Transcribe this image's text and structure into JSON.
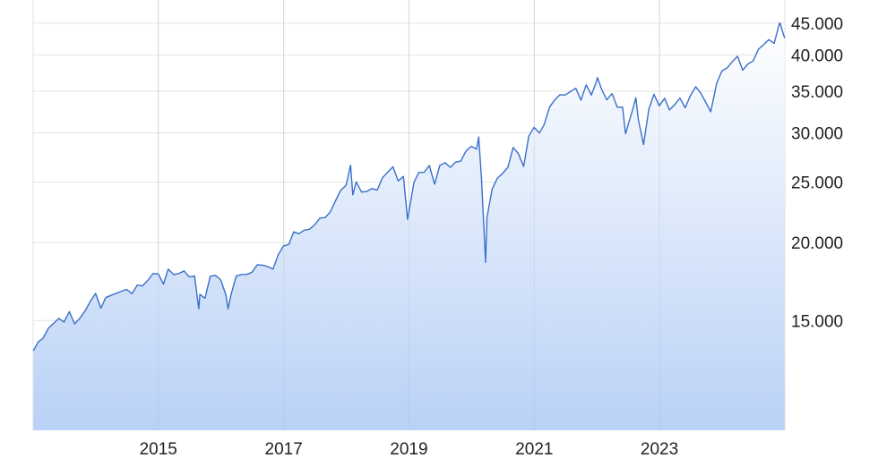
{
  "chart_data": {
    "type": "area",
    "title": "",
    "xlabel": "",
    "ylabel": "",
    "y_scale": "log",
    "ylim": [
      10000,
      49000
    ],
    "xlim": [
      "2013-01-01",
      "2025-01-01"
    ],
    "grid": true,
    "legend": "none",
    "colors": {
      "line": "#3a6fc9",
      "fill_top": "#ffffff",
      "fill_bottom": "#b9d1f6",
      "grid": "#e2e2e2"
    },
    "x_ticks": [
      {
        "date": "2015-01-01",
        "label": "2015"
      },
      {
        "date": "2017-01-01",
        "label": "2017"
      },
      {
        "date": "2019-01-01",
        "label": "2019"
      },
      {
        "date": "2021-01-01",
        "label": "2021"
      },
      {
        "date": "2023-01-01",
        "label": "2023"
      }
    ],
    "y_ticks": [
      {
        "value": 15000,
        "label": "15.000"
      },
      {
        "value": 20000,
        "label": "20.000"
      },
      {
        "value": 25000,
        "label": "25.000"
      },
      {
        "value": 30000,
        "label": "30.000"
      },
      {
        "value": 35000,
        "label": "35.000"
      },
      {
        "value": 40000,
        "label": "40.000"
      },
      {
        "value": 45000,
        "label": "45.000"
      }
    ],
    "series": [
      {
        "x": [
          "2013-01-02",
          "2013-01-31",
          "2013-02-28",
          "2013-03-31",
          "2013-04-30",
          "2013-05-31",
          "2013-06-30",
          "2013-07-31",
          "2013-08-31",
          "2013-09-30",
          "2013-10-31",
          "2013-11-30",
          "2013-12-31",
          "2014-01-31",
          "2014-02-28",
          "2014-03-31",
          "2014-04-30",
          "2014-05-31",
          "2014-06-30",
          "2014-07-31",
          "2014-08-31",
          "2014-09-30",
          "2014-10-31",
          "2014-11-30",
          "2014-12-31",
          "2015-01-31",
          "2015-02-28",
          "2015-03-31",
          "2015-04-30",
          "2015-05-31",
          "2015-06-30",
          "2015-07-31",
          "2015-08-25",
          "2015-08-31",
          "2015-09-30",
          "2015-10-31",
          "2015-11-30",
          "2015-12-31",
          "2016-01-31",
          "2016-02-11",
          "2016-02-29",
          "2016-03-31",
          "2016-04-30",
          "2016-05-31",
          "2016-06-30",
          "2016-07-31",
          "2016-08-31",
          "2016-09-30",
          "2016-10-31",
          "2016-11-30",
          "2016-12-31",
          "2017-01-31",
          "2017-02-28",
          "2017-03-31",
          "2017-04-30",
          "2017-05-31",
          "2017-06-30",
          "2017-07-31",
          "2017-08-31",
          "2017-09-30",
          "2017-10-31",
          "2017-11-30",
          "2017-12-31",
          "2018-01-26",
          "2018-02-08",
          "2018-02-28",
          "2018-03-31",
          "2018-04-30",
          "2018-05-31",
          "2018-06-30",
          "2018-07-31",
          "2018-08-31",
          "2018-09-30",
          "2018-10-31",
          "2018-11-30",
          "2018-12-24",
          "2019-01-31",
          "2019-02-28",
          "2019-03-31",
          "2019-04-30",
          "2019-05-31",
          "2019-06-30",
          "2019-07-31",
          "2019-08-31",
          "2019-09-30",
          "2019-10-31",
          "2019-11-30",
          "2019-12-31",
          "2020-01-31",
          "2020-02-12",
          "2020-02-28",
          "2020-03-23",
          "2020-03-31",
          "2020-04-30",
          "2020-05-31",
          "2020-06-30",
          "2020-07-31",
          "2020-08-31",
          "2020-09-30",
          "2020-10-31",
          "2020-11-30",
          "2020-12-31",
          "2021-01-31",
          "2021-02-28",
          "2021-03-31",
          "2021-04-30",
          "2021-05-31",
          "2021-06-30",
          "2021-07-31",
          "2021-08-31",
          "2021-09-30",
          "2021-10-31",
          "2021-11-30",
          "2021-12-31",
          "2022-01-04",
          "2022-01-31",
          "2022-02-28",
          "2022-03-31",
          "2022-04-30",
          "2022-05-31",
          "2022-06-17",
          "2022-06-30",
          "2022-07-31",
          "2022-08-16",
          "2022-08-31",
          "2022-09-30",
          "2022-10-31",
          "2022-11-30",
          "2022-12-31",
          "2023-01-31",
          "2023-02-28",
          "2023-03-31",
          "2023-04-30",
          "2023-05-31",
          "2023-06-30",
          "2023-07-31",
          "2023-08-31",
          "2023-09-30",
          "2023-10-27",
          "2023-11-30",
          "2023-12-31",
          "2024-01-31",
          "2024-02-29",
          "2024-03-31",
          "2024-04-30",
          "2024-05-31",
          "2024-06-30",
          "2024-07-31",
          "2024-08-31",
          "2024-09-30",
          "2024-10-31",
          "2024-11-30",
          "2024-12-04",
          "2024-12-31"
        ],
        "values": [
          13412,
          13860,
          14054,
          14579,
          14840,
          15116,
          14910,
          15500,
          14810,
          15130,
          15546,
          16086,
          16577,
          15699,
          16322,
          16458,
          16581,
          16717,
          16827,
          16563,
          17098,
          17043,
          17391,
          17828,
          17823,
          17165,
          18133,
          17776,
          17841,
          18011,
          17620,
          17690,
          15666,
          16528,
          16285,
          17664,
          17720,
          17425,
          16466,
          15660,
          16517,
          17685,
          17774,
          17787,
          17930,
          18432,
          18401,
          18308,
          18142,
          19124,
          19763,
          19864,
          20812,
          20663,
          20941,
          21009,
          21350,
          21891,
          21948,
          22405,
          23377,
          24272,
          24719,
          26617,
          23860,
          25029,
          24103,
          24163,
          24416,
          24271,
          25415,
          25965,
          26458,
          25116,
          25538,
          21792,
          24999,
          25916,
          25929,
          26593,
          24815,
          26600,
          26864,
          26403,
          26917,
          27046,
          28051,
          28538,
          28256,
          29551,
          25409,
          18592,
          21917,
          24346,
          25383,
          25813,
          26428,
          28430,
          27782,
          26502,
          29639,
          30606,
          29983,
          30932,
          32982,
          33875,
          34529,
          34503,
          34935,
          35361,
          33844,
          35820,
          34484,
          36338,
          36800,
          35132,
          33893,
          34678,
          32977,
          32990,
          29888,
          30775,
          32845,
          34152,
          31510,
          28726,
          32733,
          34590,
          33147,
          34086,
          32657,
          33274,
          34098,
          32908,
          34408,
          35560,
          34722,
          33508,
          32417,
          35951,
          37690,
          38150,
          38996,
          39807,
          37816,
          38686,
          39119,
          40843,
          41563,
          42330,
          41763,
          44911,
          45014,
          42544
        ]
      }
    ]
  }
}
